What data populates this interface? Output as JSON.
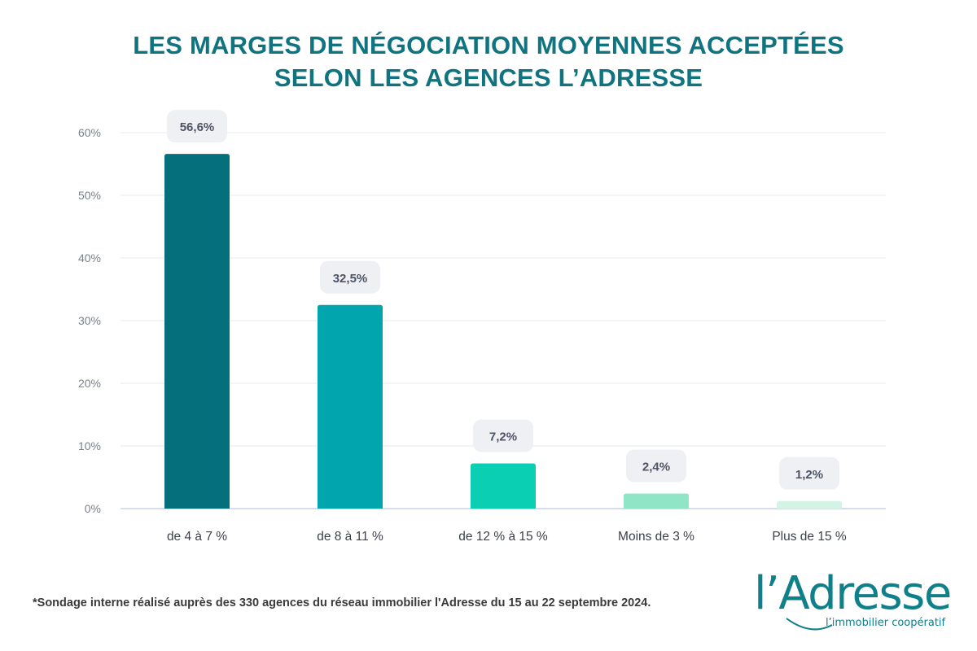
{
  "title": {
    "line1": "LES MARGES DE NÉGOCIATION MOYENNES ACCEPTÉES",
    "line2": "SELON LES AGENCES L’ADRESSE"
  },
  "chart_data": {
    "type": "bar",
    "title": "LES MARGES DE NÉGOCIATION MOYENNES ACCEPTÉES SELON LES AGENCES L’ADRESSE",
    "categories": [
      "de 4 à 7 %",
      "de 8 à 11 %",
      "de 12 % à 15 %",
      "Moins de 3 %",
      "Plus de 15 %"
    ],
    "values": [
      56.6,
      32.5,
      7.2,
      2.4,
      1.2
    ],
    "value_labels": [
      "56,6%",
      "32,5%",
      "7,2%",
      "2,4%",
      "1,2%"
    ],
    "bar_colors": [
      "#05707c",
      "#00a5ad",
      "#0bcfb2",
      "#8fe5c5",
      "#d4f3e7"
    ],
    "yticks": [
      0,
      10,
      20,
      30,
      40,
      50,
      60
    ],
    "ytick_labels": [
      "0%",
      "10%",
      "20%",
      "30%",
      "40%",
      "50%",
      "60%"
    ],
    "ylim": [
      0,
      60
    ],
    "grid": true,
    "xlabel": "",
    "ylabel": ""
  },
  "footnote": "*Sondage interne réalisé auprès des 330 agences du réseau immobilier l'Adresse du 15 au 22 septembre 2024.",
  "logo": {
    "name": "l’Adresse",
    "tagline": "l’immobilier coopératif"
  }
}
